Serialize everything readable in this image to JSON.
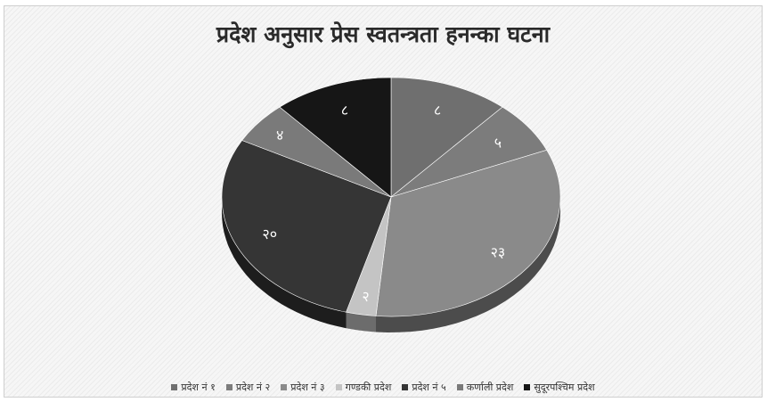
{
  "chart_data": {
    "type": "pie",
    "title": "प्रदेश अनुसार प्रेस स्वतन्त्रता हनन्का घटना",
    "categories": [
      "प्रदेश नं १",
      "प्रदेश नं २",
      "प्रदेश नं ३",
      "गण्डकी प्रदेश",
      "प्रदेश नं ५",
      "कर्णाली प्रदेश",
      "सुदूरपश्चिम प्रदेश"
    ],
    "values": [
      8,
      5,
      23,
      2,
      20,
      4,
      8
    ],
    "data_labels": [
      "८",
      "५",
      "२३",
      "२",
      "२०",
      "४",
      "८"
    ],
    "colors": [
      "#6f6f6f",
      "#7c7c7c",
      "#8a8a8a",
      "#c4c4c4",
      "#353535",
      "#7a7a7a",
      "#161616"
    ],
    "legend_position": "bottom",
    "style": "3d"
  }
}
